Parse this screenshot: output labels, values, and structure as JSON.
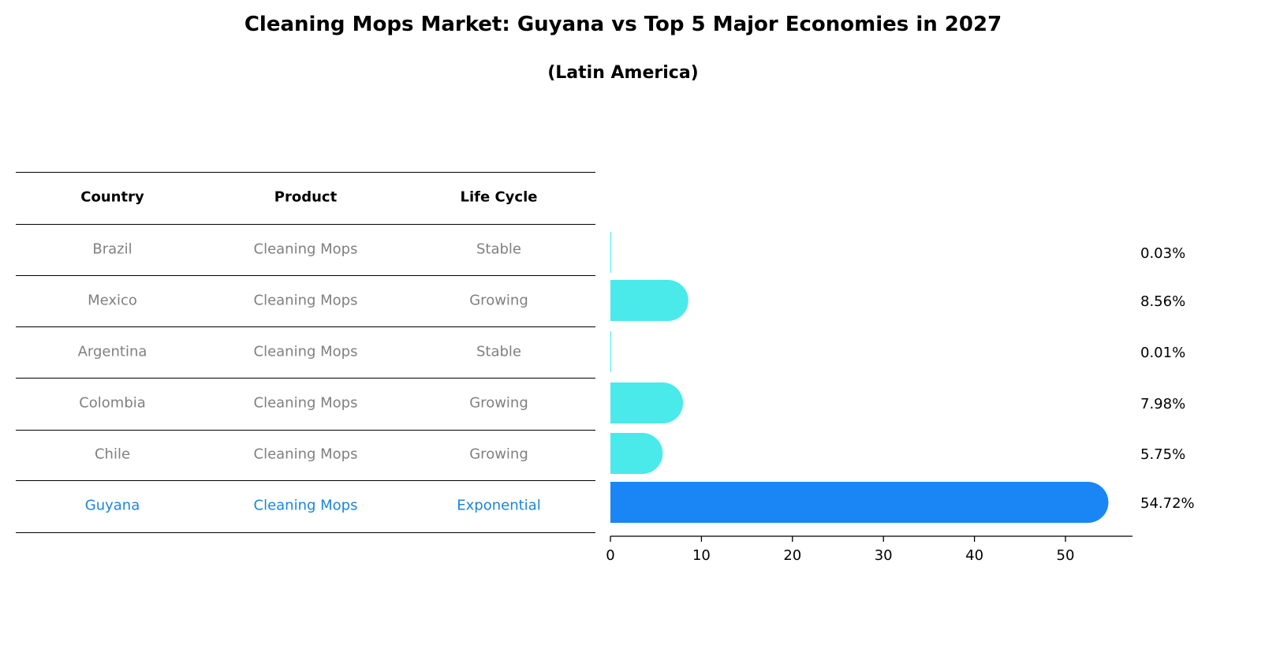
{
  "title": "Cleaning Mops Market: Guyana vs Top 5 Major Economies in 2027",
  "subtitle": "(Latin America)",
  "table": {
    "headers": [
      "Country",
      "Product",
      "Life Cycle"
    ],
    "rows": [
      [
        "Brazil",
        "Cleaning Mops",
        "Stable"
      ],
      [
        "Mexico",
        "Cleaning Mops",
        "Growing"
      ],
      [
        "Argentina",
        "Cleaning Mops",
        "Stable"
      ],
      [
        "Colombia",
        "Cleaning Mops",
        "Growing"
      ],
      [
        "Chile",
        "Cleaning Mops",
        "Growing"
      ],
      [
        "Guyana",
        "Cleaning Mops",
        "Exponential"
      ]
    ],
    "highlight_row": 5
  },
  "colors": {
    "bar": "#4aeaea",
    "highlight": "#1a86f5",
    "text_muted": "#808080",
    "highlight_text": "#1a86e0"
  },
  "chart_data": {
    "type": "bar",
    "orientation": "horizontal",
    "categories": [
      "Brazil",
      "Mexico",
      "Argentina",
      "Colombia",
      "Chile",
      "Guyana"
    ],
    "values": [
      0.03,
      8.56,
      0.01,
      7.98,
      5.75,
      54.72
    ],
    "labels": [
      "0.03%",
      "8.56%",
      "0.01%",
      "7.98%",
      "5.75%",
      "54.72%"
    ],
    "xticks": [
      0,
      10,
      20,
      30,
      40,
      50
    ],
    "xlim": [
      0,
      57.4
    ],
    "xlabel": "",
    "ylabel": ""
  }
}
